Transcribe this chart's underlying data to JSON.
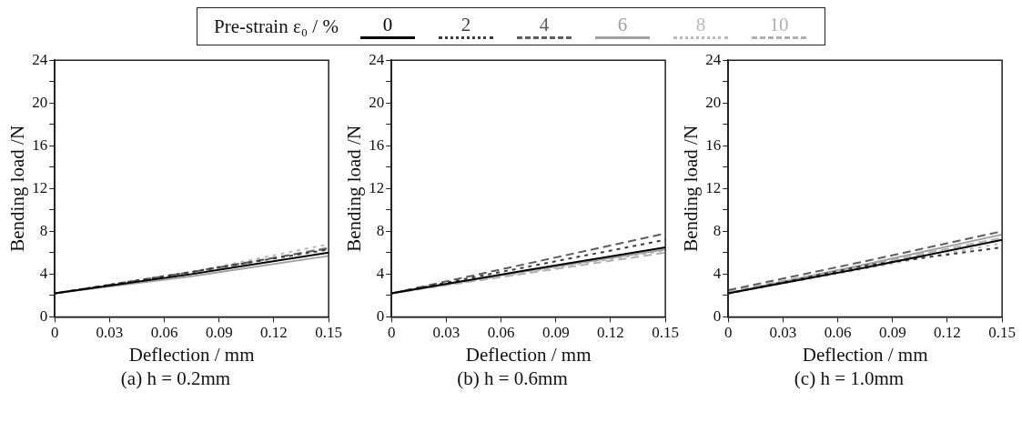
{
  "chart_data": [
    {
      "type": "line",
      "subtitle": "(a) h = 0.2mm",
      "xlabel": "Deflection / mm",
      "ylabel": "Bending load /N",
      "legend": "top",
      "legend_title": "Pre-strain  ε₀ / %",
      "marker": "none",
      "grid": false,
      "xlim": [
        0,
        0.15
      ],
      "ylim": [
        0,
        24
      ],
      "xticks": [
        0,
        0.03,
        0.06,
        0.09,
        0.12,
        0.15
      ],
      "yticks": [
        0,
        {
          "value": 2,
          "label": null
        },
        4,
        {
          "value": 6,
          "label": null
        },
        8,
        {
          "value": 10,
          "label": null
        },
        12,
        {
          "value": 14,
          "label": null
        },
        16,
        {
          "value": 18,
          "label": null
        },
        20,
        {
          "value": 22,
          "label": null
        },
        24
      ],
      "x": [
        0,
        0.075,
        0.15
      ],
      "series": [
        {
          "name": "0",
          "color": "#000000",
          "line_style": "solid",
          "values": [
            2.2,
            4.0,
            6.0
          ]
        },
        {
          "name": "2",
          "color": "#3c3c3c",
          "line_style": "dotted",
          "values": [
            2.2,
            4.2,
            6.3
          ]
        },
        {
          "name": "4",
          "color": "#5e5e5e",
          "line_style": "dashed",
          "values": [
            2.2,
            4.2,
            6.4
          ]
        },
        {
          "name": "6",
          "color": "#a0a0a0",
          "line_style": "solid",
          "values": [
            2.2,
            3.8,
            5.7
          ]
        },
        {
          "name": "8",
          "color": "#bbbbbb",
          "line_style": "dotted",
          "values": [
            2.2,
            4.2,
            6.8
          ]
        },
        {
          "name": "10",
          "color": "#b0b0b0",
          "line_style": "dashed",
          "values": [
            2.2,
            4.0,
            6.5
          ]
        }
      ]
    },
    {
      "type": "line",
      "subtitle": "(b) h = 0.6mm",
      "xlabel": "Deflection / mm",
      "ylabel": "Bending load /N",
      "legend": false,
      "marker": "none",
      "grid": false,
      "xlim": [
        0,
        0.15
      ],
      "ylim": [
        0,
        24
      ],
      "xticks": [
        0,
        0.03,
        0.06,
        0.09,
        0.12,
        0.15
      ],
      "yticks": [
        0,
        {
          "value": 2,
          "label": null
        },
        4,
        {
          "value": 6,
          "label": null
        },
        8,
        {
          "value": 10,
          "label": null
        },
        12,
        {
          "value": 14,
          "label": null
        },
        16,
        {
          "value": 18,
          "label": null
        },
        20,
        {
          "value": 22,
          "label": null
        },
        24
      ],
      "x": [
        0,
        0.075,
        0.15
      ],
      "series": [
        {
          "color": "#000000",
          "line_style": "solid",
          "values": [
            2.2,
            4.4,
            6.5
          ]
        },
        {
          "color": "#3c3c3c",
          "line_style": "dotted",
          "values": [
            2.2,
            4.7,
            7.2
          ]
        },
        {
          "color": "#5e5e5e",
          "line_style": "dashed",
          "values": [
            2.2,
            5.0,
            7.8
          ]
        },
        {
          "color": "#a0a0a0",
          "line_style": "solid",
          "values": [
            2.2,
            4.3,
            6.3
          ]
        },
        {
          "color": "#bbbbbb",
          "line_style": "dotted",
          "values": [
            2.2,
            4.2,
            6.2
          ]
        },
        {
          "color": "#b0b0b0",
          "line_style": "dashed",
          "values": [
            2.2,
            4.1,
            6.0
          ]
        }
      ]
    },
    {
      "type": "line",
      "subtitle": "(c) h = 1.0mm",
      "xlabel": "Deflection / mm",
      "ylabel": "Bending load /N",
      "legend": false,
      "marker": "none",
      "grid": false,
      "xlim": [
        0,
        0.15
      ],
      "ylim": [
        0,
        24
      ],
      "xticks": [
        0,
        0.03,
        0.06,
        0.09,
        0.12,
        0.15
      ],
      "yticks": [
        0,
        {
          "value": 2,
          "label": null
        },
        4,
        {
          "value": 6,
          "label": null
        },
        8,
        {
          "value": 10,
          "label": null
        },
        12,
        {
          "value": 14,
          "label": null
        },
        16,
        {
          "value": 18,
          "label": null
        },
        20,
        {
          "value": 22,
          "label": null
        },
        24
      ],
      "x": [
        0,
        0.075,
        0.15
      ],
      "series": [
        {
          "color": "#000000",
          "line_style": "solid",
          "values": [
            2.2,
            4.6,
            7.2
          ]
        },
        {
          "color": "#3c3c3c",
          "line_style": "dotted",
          "values": [
            2.2,
            4.8,
            6.5
          ]
        },
        {
          "color": "#5e5e5e",
          "line_style": "dashed",
          "values": [
            2.5,
            5.2,
            8.0
          ]
        },
        {
          "color": "#a0a0a0",
          "line_style": "solid",
          "values": [
            2.2,
            4.9,
            7.7
          ]
        },
        {
          "color": "#bbbbbb",
          "line_style": "dotted",
          "values": [
            2.2,
            4.5,
            6.9
          ]
        },
        {
          "color": "#b0b0b0",
          "line_style": "dashed",
          "values": [
            2.4,
            4.8,
            7.4
          ]
        }
      ]
    }
  ]
}
